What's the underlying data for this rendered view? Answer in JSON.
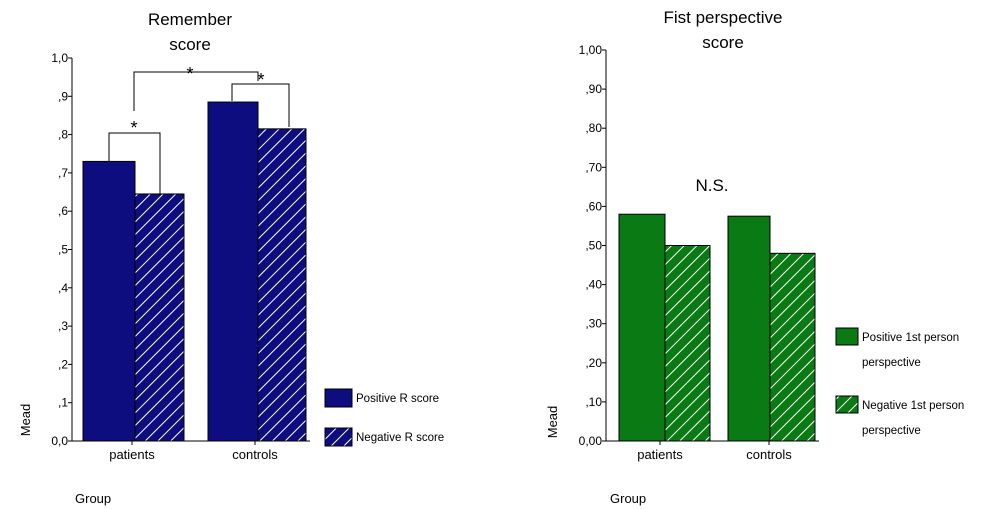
{
  "chart_data": [
    {
      "type": "bar",
      "title_lines": [
        "Remember",
        "score"
      ],
      "categories": [
        "patients",
        "controls"
      ],
      "series": [
        {
          "name": "Positive R score",
          "values": [
            0.73,
            0.885
          ]
        },
        {
          "name": "Negative R score",
          "values": [
            0.645,
            0.815
          ]
        }
      ],
      "ylim": [
        0,
        1.0
      ],
      "y_ticks": [
        "0,0",
        ",1",
        ",2",
        ",3",
        ",4",
        ",5",
        ",6",
        ",7",
        ",8",
        ",9",
        "1,0"
      ],
      "ylabel": "Mead",
      "xlabel": "Group",
      "annotations": [
        "*",
        "*",
        "*"
      ],
      "legend_position": "right",
      "colors": {
        "fill": "#0d0d80",
        "hatch": "#ffffff"
      }
    },
    {
      "type": "bar",
      "title_lines": [
        "Fist perspective",
        "score"
      ],
      "categories": [
        "patients",
        "controls"
      ],
      "series": [
        {
          "name_lines": [
            "Positive 1st person",
            "perspective"
          ],
          "values": [
            0.58,
            0.575
          ]
        },
        {
          "name_lines": [
            "Negative 1st person",
            "perspective"
          ],
          "values": [
            0.5,
            0.48
          ]
        }
      ],
      "ylim": [
        0,
        1.0
      ],
      "y_ticks": [
        "0,00",
        ",10",
        ",20",
        ",30",
        ",40",
        ",50",
        ",60",
        ",70",
        ",80",
        ",90",
        "1,00"
      ],
      "ylabel": "Mead",
      "xlabel": "Group",
      "annotation": "N.S.",
      "legend_position": "right",
      "colors": {
        "fill": "#0a7a14",
        "hatch": "#ffffff"
      }
    }
  ]
}
